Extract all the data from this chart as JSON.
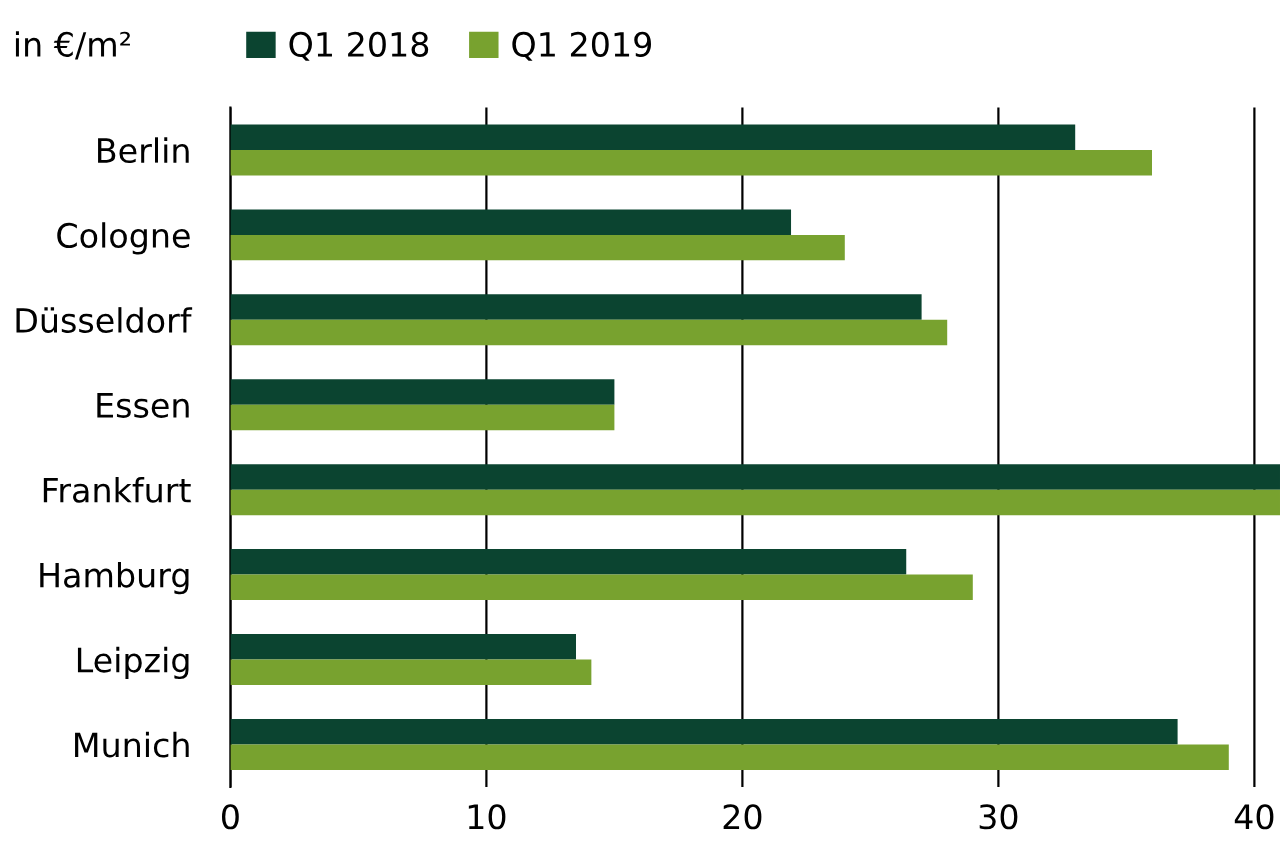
{
  "chart_data": {
    "type": "bar",
    "orientation": "horizontal",
    "ylabel": "in €/m²",
    "categories": [
      "Berlin",
      "Cologne",
      "Düsseldorf",
      "Essen",
      "Frankfurt",
      "Hamburg",
      "Leipzig",
      "Munich"
    ],
    "series": [
      {
        "name": "Q1 2018",
        "color": "#0b4430",
        "values": [
          33,
          21.9,
          27,
          15,
          41,
          26.4,
          13.5,
          37
        ]
      },
      {
        "name": "Q1 2019",
        "color": "#78a22f",
        "values": [
          36,
          24,
          28,
          15,
          41,
          29,
          14.1,
          39
        ]
      }
    ],
    "xlim": [
      0,
      41
    ],
    "xticks": [
      0,
      10,
      20,
      30,
      40
    ],
    "grid": "x",
    "legend": "top"
  }
}
